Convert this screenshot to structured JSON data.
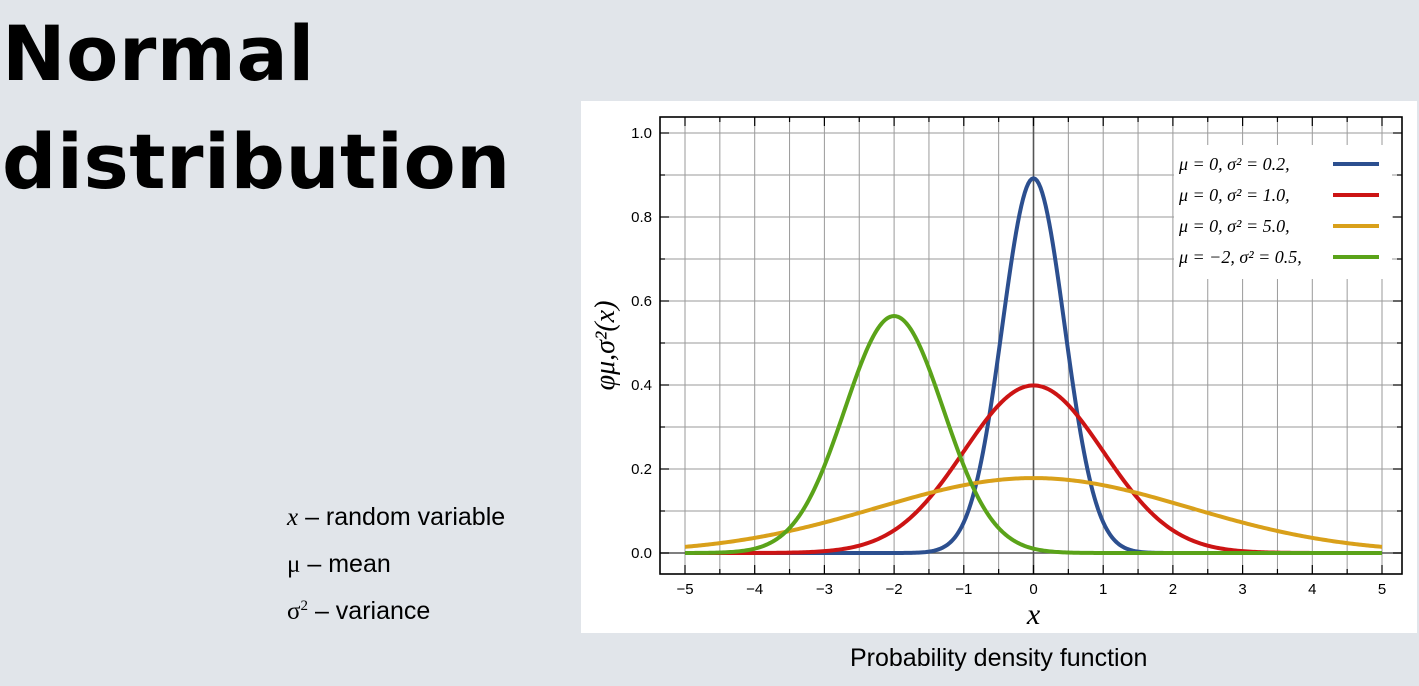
{
  "page": {
    "title_line1": "Normal",
    "title_line2": "distribution",
    "definitions": [
      {
        "symbol": "x",
        "symbol_italic": true,
        "sup": "",
        "text": "– random variable"
      },
      {
        "symbol": "μ",
        "symbol_italic": false,
        "sup": "",
        "text": "– mean"
      },
      {
        "symbol": "σ",
        "symbol_italic": false,
        "sup": "2",
        "text": "– variance"
      }
    ],
    "caption": "Probability density function"
  },
  "chart_data": {
    "type": "line",
    "xlabel": "x",
    "ylabel": "φμ,σ²(x)",
    "xlim": [
      -5,
      5
    ],
    "ylim": [
      0,
      1.0
    ],
    "xticks": [
      -5,
      -4,
      -3,
      -2,
      -1,
      0,
      1,
      2,
      3,
      4,
      5
    ],
    "xtick_labels": [
      "−5",
      "−4",
      "−3",
      "−2",
      "−1",
      "0",
      "1",
      "2",
      "3",
      "4",
      "5"
    ],
    "yticks": [
      0.0,
      0.2,
      0.4,
      0.6,
      0.8,
      1.0
    ],
    "ytick_labels": [
      "0.0",
      "0.2",
      "0.4",
      "0.6",
      "0.8",
      "1.0"
    ],
    "grid": true,
    "legend_position": "top-right",
    "series": [
      {
        "name": "μ = 0,    σ² = 0.2,",
        "mu": 0,
        "variance": 0.2,
        "color": "#2c4f8f"
      },
      {
        "name": "μ = 0,    σ² = 1.0,",
        "mu": 0,
        "variance": 1.0,
        "color": "#cc1414"
      },
      {
        "name": "μ = 0,    σ² = 5.0,",
        "mu": 0,
        "variance": 5.0,
        "color": "#d9a01a"
      },
      {
        "name": "μ = −2,  σ² = 0.5,",
        "mu": -2,
        "variance": 0.5,
        "color": "#5aa319"
      }
    ]
  }
}
